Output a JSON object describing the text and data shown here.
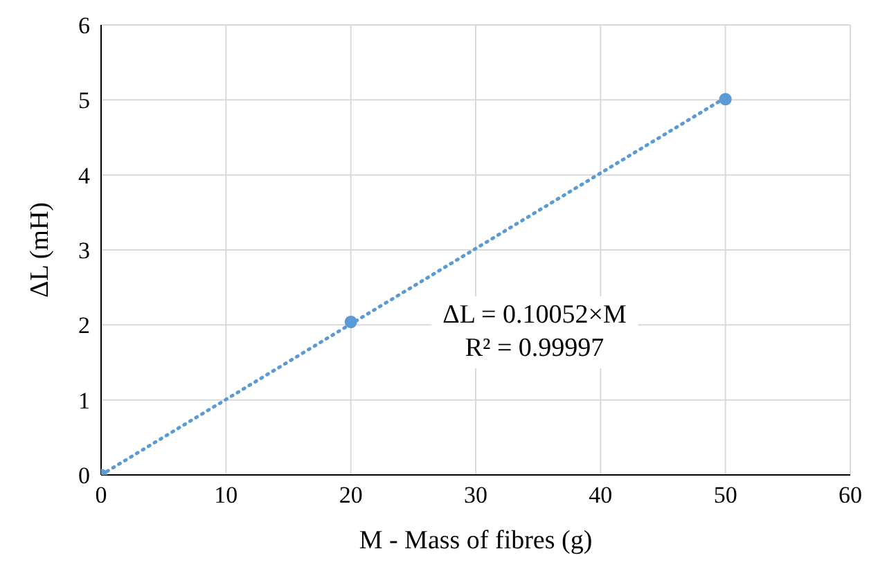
{
  "chart_data": {
    "type": "scatter",
    "xlabel": "M - Mass of fibres (g)",
    "ylabel": "ΔL (mH)",
    "xlim": [
      0,
      60
    ],
    "xticks": [
      0,
      10,
      20,
      30,
      40,
      50,
      60
    ],
    "ylim": [
      0,
      6
    ],
    "yticks": [
      0,
      1,
      2,
      3,
      4,
      5,
      6
    ],
    "grid": true,
    "series": [
      {
        "color": "#5b9bd5",
        "x": [
          0,
          20,
          50
        ],
        "values": [
          0,
          2.04,
          5.01
        ],
        "marker": "circle"
      },
      {
        "type": "line",
        "color": "#5b9bd5",
        "x": [
          0,
          50
        ],
        "values": [
          0,
          5.03
        ],
        "marker": "none",
        "line_style": "dotted"
      }
    ],
    "annotations": [
      "ΔL = 0.10052×M",
      "R² = 0.99997"
    ]
  }
}
